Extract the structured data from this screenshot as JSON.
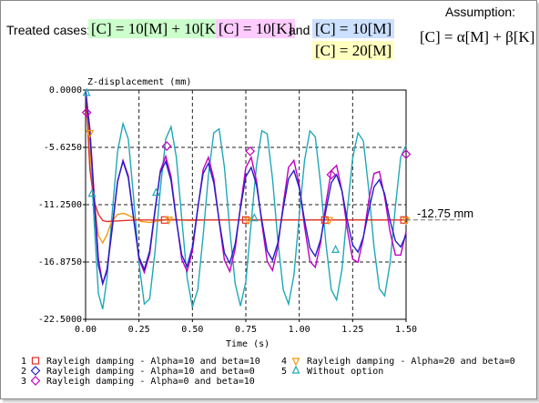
{
  "header": {
    "treated_label": "Treated cases:",
    "case1": "[C] = 10[M] + 10[K] ,",
    "case2": "[C] = 10[K]",
    "and_text": "and",
    "case3": "[C] = 10[M]",
    "case4": "[C] = 20[M]",
    "assumption_label": "Assumption:",
    "assumption_formula": "[C] = α[M] + β[K]",
    "colors": {
      "case1_bg": "#ccffcc",
      "case2_bg": "#ffccff",
      "case3_bg": "#cce0ff",
      "case4_bg": "#ffffc0"
    }
  },
  "chart_data": {
    "type": "line",
    "ylabel": "Z-displacement (mm)",
    "xlabel": "Time (s)",
    "xlim": [
      0,
      1.5
    ],
    "ylim": [
      -22.5,
      0
    ],
    "x_ticks": [
      "0.00",
      "0.25",
      "0.50",
      "0.75",
      "1.00",
      "1.25",
      "1.50"
    ],
    "y_ticks": [
      "0.0000",
      "-5.6250",
      "-11.2500",
      "-16.8750",
      "-22.5000"
    ],
    "grid": "dashed",
    "annotation": {
      "text": "-12.75 mm",
      "y": -12.75
    },
    "legend_position": "bottom",
    "series": [
      {
        "name": "Rayleigh damping - Alpha=10 and beta=10",
        "color": "#e0302a",
        "marker": "square",
        "x": [
          0,
          0.01,
          0.02,
          0.04,
          0.06,
          0.08,
          0.1,
          0.14,
          0.18,
          0.24,
          0.3,
          0.38,
          0.46,
          0.55,
          0.65,
          0.75,
          0.85,
          1.0,
          1.12,
          1.25,
          1.38,
          1.5
        ],
        "y": [
          0,
          -3.5,
          -7.8,
          -10.9,
          -12.2,
          -12.8,
          -12.9,
          -12.85,
          -12.8,
          -12.75,
          -12.75,
          -12.75,
          -12.75,
          -12.75,
          -12.75,
          -12.75,
          -12.75,
          -12.75,
          -12.75,
          -12.75,
          -12.75,
          -12.75
        ],
        "marker_x": [
          0.37,
          0.75,
          1.12,
          1.49
        ],
        "marker_y": [
          -12.75,
          -12.75,
          -12.75,
          -12.75
        ]
      },
      {
        "name": "Rayleigh damping - Alpha=10 and beta=0",
        "color": "#2020c8",
        "marker": "diamond",
        "x": [
          0,
          0.02,
          0.04,
          0.06,
          0.08,
          0.1,
          0.125,
          0.15,
          0.175,
          0.2,
          0.225,
          0.25,
          0.275,
          0.3,
          0.325,
          0.35,
          0.375,
          0.4,
          0.425,
          0.45,
          0.475,
          0.5,
          0.525,
          0.55,
          0.575,
          0.6,
          0.625,
          0.65,
          0.675,
          0.7,
          0.725,
          0.75,
          0.775,
          0.8,
          0.825,
          0.85,
          0.875,
          0.9,
          0.925,
          0.95,
          0.975,
          1.0,
          1.025,
          1.05,
          1.075,
          1.1,
          1.125,
          1.15,
          1.175,
          1.2,
          1.225,
          1.25,
          1.275,
          1.3,
          1.325,
          1.35,
          1.375,
          1.4,
          1.425,
          1.45,
          1.475,
          1.5
        ],
        "y": [
          0,
          -4.0,
          -10.8,
          -17.2,
          -19.0,
          -17.6,
          -13.4,
          -8.9,
          -7.0,
          -8.6,
          -12.7,
          -16.4,
          -17.6,
          -15.8,
          -11.7,
          -8.1,
          -7.0,
          -8.9,
          -12.8,
          -16.2,
          -17.3,
          -15.4,
          -11.6,
          -8.2,
          -7.2,
          -9.1,
          -12.8,
          -16.0,
          -17.0,
          -15.1,
          -11.6,
          -8.5,
          -7.6,
          -9.3,
          -12.8,
          -15.8,
          -16.7,
          -15.0,
          -11.6,
          -8.7,
          -7.9,
          -9.6,
          -12.8,
          -15.5,
          -16.3,
          -14.7,
          -11.8,
          -9.1,
          -8.3,
          -9.9,
          -12.8,
          -15.2,
          -15.9,
          -14.4,
          -11.9,
          -9.5,
          -8.8,
          -10.2,
          -12.8,
          -14.8,
          -15.4,
          -14.2
        ]
      },
      {
        "name": "Rayleigh damping - Alpha=0 and beta=10",
        "color": "#c000c0",
        "marker": "diamond",
        "x": [
          0,
          0.02,
          0.04,
          0.06,
          0.08,
          0.1,
          0.125,
          0.15,
          0.175,
          0.2,
          0.225,
          0.25,
          0.275,
          0.3,
          0.325,
          0.35,
          0.375,
          0.4,
          0.425,
          0.45,
          0.475,
          0.5,
          0.525,
          0.55,
          0.575,
          0.6,
          0.625,
          0.65,
          0.675,
          0.7,
          0.725,
          0.75,
          0.775,
          0.8,
          0.825,
          0.85,
          0.875,
          0.9,
          0.925,
          0.95,
          0.975,
          1.0,
          1.025,
          1.05,
          1.075,
          1.1,
          1.125,
          1.15,
          1.175,
          1.2,
          1.225,
          1.25,
          1.275,
          1.3,
          1.325,
          1.35,
          1.375,
          1.4,
          1.425,
          1.45,
          1.475,
          1.5
        ],
        "y": [
          0,
          -3.8,
          -10.2,
          -16.6,
          -19.0,
          -17.8,
          -13.6,
          -9.0,
          -6.9,
          -8.4,
          -12.6,
          -16.6,
          -17.9,
          -16.1,
          -11.9,
          -7.9,
          -6.5,
          -8.5,
          -12.7,
          -16.6,
          -17.8,
          -15.8,
          -11.7,
          -7.8,
          -6.6,
          -8.7,
          -12.9,
          -16.7,
          -17.8,
          -15.6,
          -11.4,
          -7.6,
          -6.6,
          -8.9,
          -13.1,
          -16.8,
          -17.7,
          -15.4,
          -11.2,
          -7.6,
          -6.9,
          -9.3,
          -13.4,
          -16.8,
          -17.4,
          -15.0,
          -11.1,
          -7.9,
          -7.4,
          -9.9,
          -13.7,
          -16.6,
          -16.9,
          -14.5,
          -10.9,
          -8.2,
          -8.0,
          -10.5,
          -13.9,
          -16.2,
          -16.2,
          -13.9
        ],
        "marker_x": [
          0.005,
          0.38,
          0.77,
          1.15,
          1.5
        ],
        "marker_y": [
          -2.2,
          -5.5,
          -6.0,
          -8.3,
          -6.3
        ]
      },
      {
        "name": "Rayleigh damping - Alpha=20 and beta=0",
        "color": "#f09a10",
        "marker": "triangle-down",
        "x": [
          0,
          0.01,
          0.02,
          0.04,
          0.06,
          0.08,
          0.1,
          0.12,
          0.15,
          0.18,
          0.22,
          0.26,
          0.3,
          0.34,
          0.38,
          0.42,
          0.46,
          0.5,
          0.55,
          0.6,
          0.7,
          0.8,
          0.9,
          1.0,
          1.1,
          1.2,
          1.3,
          1.4,
          1.5
        ],
        "y": [
          0,
          -2.5,
          -5.8,
          -10.8,
          -14.3,
          -15.0,
          -14.2,
          -13.0,
          -12.2,
          -12.1,
          -12.5,
          -12.9,
          -13.0,
          -12.85,
          -12.7,
          -12.7,
          -12.78,
          -12.8,
          -12.76,
          -12.74,
          -12.75,
          -12.75,
          -12.75,
          -12.75,
          -12.75,
          -12.75,
          -12.75,
          -12.75,
          -12.75
        ],
        "marker_x": [
          0.02,
          0.39,
          0.76,
          1.14,
          1.5
        ],
        "marker_y": [
          -4.2,
          -12.7,
          -12.75,
          -12.75,
          -12.75
        ]
      },
      {
        "name": "Without option",
        "color": "#20a8b8",
        "marker": "triangle-up",
        "x": [
          0,
          0.02,
          0.04,
          0.06,
          0.08,
          0.1,
          0.125,
          0.15,
          0.175,
          0.2,
          0.225,
          0.25,
          0.275,
          0.3,
          0.325,
          0.35,
          0.375,
          0.4,
          0.425,
          0.45,
          0.475,
          0.5,
          0.525,
          0.55,
          0.575,
          0.6,
          0.625,
          0.65,
          0.675,
          0.7,
          0.725,
          0.75,
          0.775,
          0.8,
          0.825,
          0.85,
          0.875,
          0.9,
          0.925,
          0.95,
          0.975,
          1.0,
          1.025,
          1.05,
          1.075,
          1.1,
          1.125,
          1.15,
          1.175,
          1.2,
          1.225,
          1.25,
          1.275,
          1.3,
          1.325,
          1.35,
          1.375,
          1.4,
          1.425,
          1.45,
          1.475,
          1.5
        ],
        "y": [
          0,
          -5.0,
          -12.9,
          -20.0,
          -21.5,
          -18.5,
          -12.0,
          -6.0,
          -3.3,
          -4.8,
          -10.6,
          -17.0,
          -21.0,
          -20.5,
          -15.8,
          -9.7,
          -4.8,
          -3.6,
          -6.6,
          -12.6,
          -18.4,
          -21.3,
          -19.6,
          -14.3,
          -8.4,
          -4.2,
          -3.8,
          -7.6,
          -13.7,
          -19.0,
          -21.2,
          -18.8,
          -13.0,
          -7.4,
          -4.0,
          -4.3,
          -8.7,
          -14.8,
          -19.6,
          -21.0,
          -18.2,
          -12.3,
          -6.9,
          -4.0,
          -4.6,
          -9.2,
          -15.1,
          -19.6,
          -20.6,
          -17.6,
          -11.8,
          -6.7,
          -4.2,
          -5.0,
          -9.7,
          -15.4,
          -19.5,
          -20.2,
          -17.0,
          -11.4,
          -6.6,
          -5.4
        ],
        "marker_x": [
          0.005,
          0.03,
          0.33,
          0.79,
          1.17
        ],
        "marker_y": [
          -0.3,
          -10.2,
          -10.1,
          -12.6,
          -15.7
        ]
      }
    ]
  },
  "legend": [
    {
      "num": "1",
      "label": "Rayleigh damping - Alpha=10 and beta=10",
      "color": "#e0302a",
      "marker": "square"
    },
    {
      "num": "2",
      "label": "Rayleigh damping - Alpha=10 and beta=0",
      "color": "#2020c8",
      "marker": "diamond"
    },
    {
      "num": "3",
      "label": "Rayleigh damping - Alpha=0 and beta=10",
      "color": "#c000c0",
      "marker": "diamond"
    },
    {
      "num": "4",
      "label": "Rayleigh damping - Alpha=20 and beta=0",
      "color": "#f09a10",
      "marker": "triangle-down"
    },
    {
      "num": "5",
      "label": "Without option",
      "color": "#20a8b8",
      "marker": "triangle-up"
    }
  ]
}
